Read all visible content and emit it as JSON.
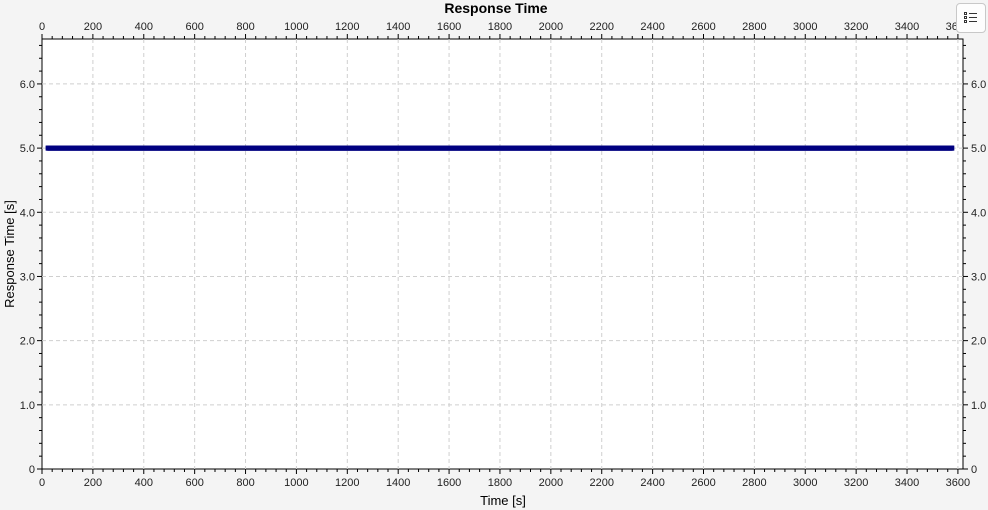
{
  "chart_data": {
    "type": "scatter",
    "title": "Response Time",
    "xlabel": "Time [s]",
    "ylabel": "Response Time [s]",
    "xlim": [
      0,
      3620
    ],
    "ylim": [
      0,
      6.7
    ],
    "x_ticks": [
      0,
      200,
      400,
      600,
      800,
      1000,
      1200,
      1400,
      1600,
      1800,
      2000,
      2200,
      2400,
      2600,
      2800,
      3000,
      3200,
      3400,
      3600
    ],
    "x_tick_labels": [
      "0",
      "200",
      "400",
      "600",
      "800",
      "1000",
      "1200",
      "1400",
      "1600",
      "1800",
      "2000",
      "2200",
      "2400",
      "2600",
      "2800",
      "3000",
      "3200",
      "3400",
      "3600"
    ],
    "y_ticks": [
      0,
      1,
      2,
      3,
      4,
      5,
      6
    ],
    "y_tick_labels": [
      "0",
      "1.0",
      "2.0",
      "3.0",
      "4.0",
      "5.0",
      "6.0"
    ],
    "grid": true,
    "series": [
      {
        "color": "#000080",
        "x_start": 20,
        "x_end": 3580,
        "x_step": 2,
        "y_value": 5.0
      }
    ]
  },
  "legend_button": {
    "icon": "list-icon"
  }
}
